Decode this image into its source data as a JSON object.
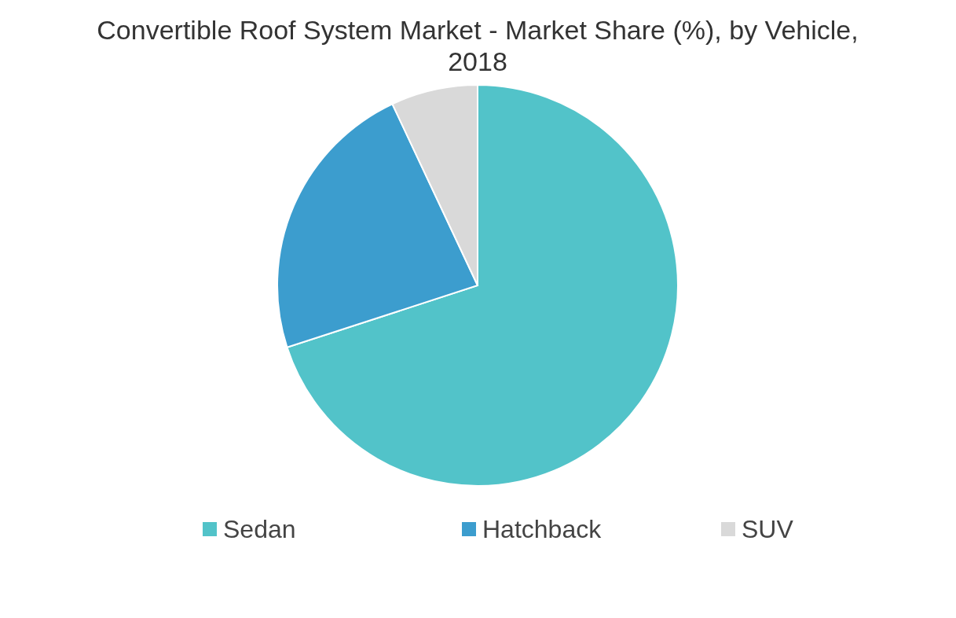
{
  "chart_data": {
    "type": "pie",
    "title": "Convertible Roof System Market - Market Share (%), by Vehicle, 2018",
    "categories": [
      "Sedan",
      "Hatchback",
      "SUV"
    ],
    "values": [
      70,
      23,
      7
    ],
    "colors": [
      "#52c3c9",
      "#3c9dce",
      "#d9d9d9"
    ],
    "legend": "bottom"
  }
}
